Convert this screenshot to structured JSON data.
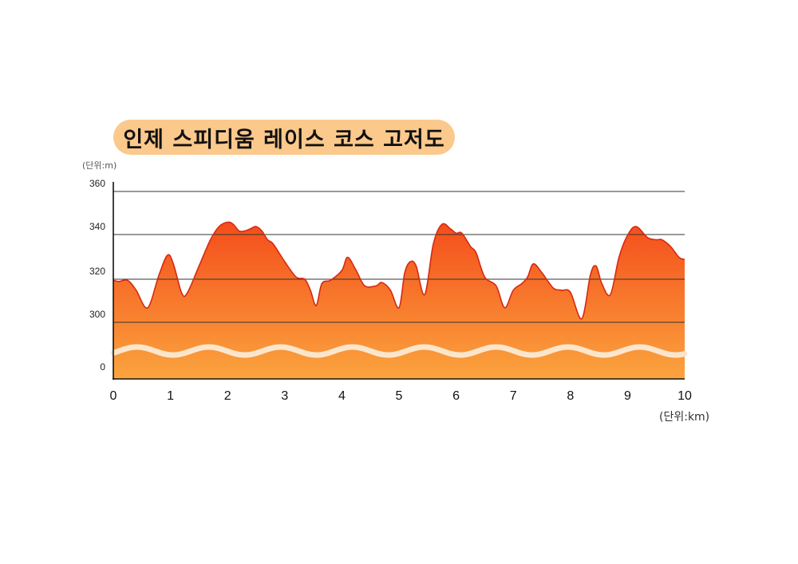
{
  "title": "인제 스피디움 레이스 코스 고저도",
  "y_unit_label": "(단위:m)",
  "x_unit_label": "(단위:km)",
  "colors": {
    "title_bg": "#fbc98c",
    "fill_top": "#f44d1b",
    "fill_bottom": "#fba43e",
    "outline": "#d62a12",
    "road": "#fbe6cc",
    "gridline": "#333333"
  },
  "chart_data": {
    "type": "area",
    "title": "인제 스피디움 레이스 코스 고저도",
    "xlabel": "(단위:km)",
    "ylabel": "(단위:m)",
    "x_ticks": [
      "0",
      "1",
      "2",
      "3",
      "4",
      "5",
      "6",
      "7",
      "8",
      "9",
      "10"
    ],
    "y_ticks": [
      "0",
      "300",
      "320",
      "340",
      "360"
    ],
    "y_axis_broken": true,
    "xlim": [
      0,
      10
    ],
    "ylim": [
      0,
      360
    ],
    "grid": "horizontal",
    "series": [
      {
        "x": [
          0,
          0.1,
          0.25,
          0.4,
          0.6,
          0.8,
          0.95,
          1.05,
          1.2,
          1.3,
          1.5,
          1.7,
          1.85,
          2.0,
          2.1,
          2.2,
          2.3,
          2.4,
          2.5,
          2.6,
          2.7,
          2.8,
          3.0,
          3.2,
          3.35,
          3.45,
          3.55,
          3.65,
          3.8,
          4.0,
          4.1,
          4.25,
          4.4,
          4.6,
          4.7,
          4.85,
          5.0,
          5.1,
          5.2,
          5.3,
          5.45,
          5.6,
          5.75,
          5.9,
          6.0,
          6.1,
          6.25,
          6.35,
          6.5,
          6.7,
          6.85,
          7.0,
          7.15,
          7.25,
          7.35,
          7.5,
          7.7,
          7.85,
          8.0,
          8.2,
          8.35,
          8.45,
          8.55,
          8.7,
          8.85,
          9.0,
          9.15,
          9.35,
          9.5,
          9.6,
          9.75,
          9.9,
          10.0
        ],
        "values": [
          319.5,
          319,
          319.5,
          315,
          307,
          322,
          331,
          327,
          313.5,
          314,
          326,
          338,
          344,
          346,
          345,
          342,
          342,
          343,
          344,
          342,
          338,
          336,
          328,
          321,
          320,
          315,
          308,
          318,
          319.5,
          324,
          330,
          324,
          317,
          317,
          318.5,
          315,
          307,
          323,
          328,
          326,
          313,
          336,
          345,
          343,
          341,
          341,
          335,
          332,
          321,
          317,
          307,
          315,
          318,
          321,
          327,
          323,
          316,
          315,
          314,
          302,
          322,
          326,
          318,
          313,
          330,
          340,
          344,
          339,
          338,
          338,
          335,
          330,
          329
        ]
      }
    ]
  }
}
